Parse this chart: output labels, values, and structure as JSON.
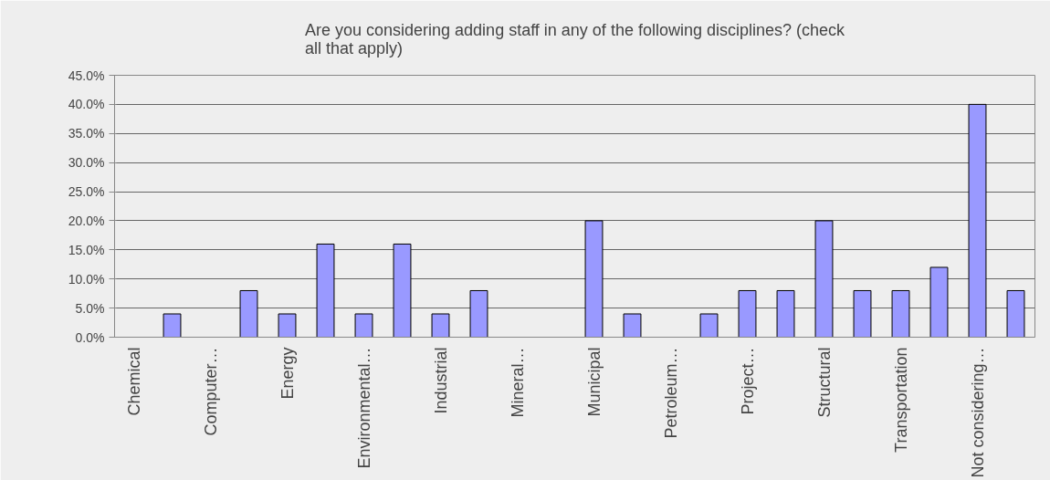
{
  "chart_data": {
    "type": "bar",
    "title": "Are you considering adding staff in any of the following disciplines? (check all that apply)",
    "categories": [
      "Chemical",
      null,
      "Computer…",
      null,
      "Energy",
      null,
      "Environmental…",
      null,
      "Industrial",
      null,
      "Mineral…",
      null,
      "Municipal",
      null,
      "Petroleum…",
      null,
      "Project…",
      null,
      "Structural",
      null,
      "Transportation",
      null,
      "Not considering…",
      null
    ],
    "values": [
      0,
      4,
      0,
      8,
      4,
      16,
      4,
      16,
      4,
      8,
      0,
      0,
      20,
      4,
      0,
      4,
      8,
      8,
      20,
      8,
      8,
      12,
      40,
      8
    ],
    "color": "#9999ff",
    "ylim": [
      0,
      45
    ],
    "yticks": [
      {
        "value": 0,
        "label": "0.0%"
      },
      {
        "value": 5,
        "label": "5.0%"
      },
      {
        "value": 10,
        "label": "10.0%"
      },
      {
        "value": 15,
        "label": "15.0%"
      },
      {
        "value": 20,
        "label": "20.0%"
      },
      {
        "value": 25,
        "label": "25.0%"
      },
      {
        "value": 30,
        "label": "30.0%"
      },
      {
        "value": 35,
        "label": "35.0%"
      },
      {
        "value": 40,
        "label": "40.0%"
      },
      {
        "value": 45,
        "label": "45.0%"
      }
    ],
    "grid": "y"
  }
}
